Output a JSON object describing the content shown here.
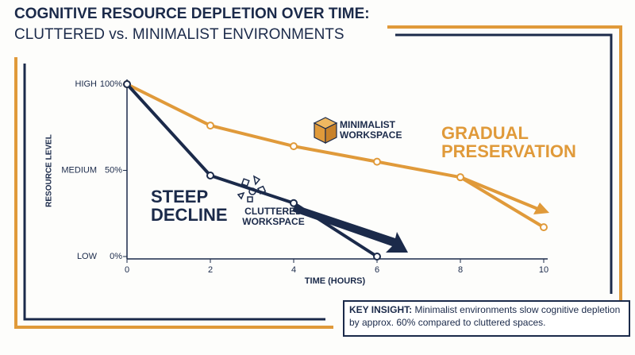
{
  "chart_data": {
    "type": "line",
    "title": "COGNITIVE RESOURCE DEPLETION OVER TIME:",
    "subtitle": "CLUTTERED vs. MINIMALIST ENVIRONMENTS",
    "x_label": "TIME (HOURS)",
    "y_label": "RESOURCE LEVEL",
    "x": [
      0,
      2,
      4,
      6,
      8,
      10
    ],
    "series": [
      {
        "name": "MINIMALIST WORKSPACE",
        "color": "#e09a3a",
        "values": [
          100,
          76,
          64,
          55,
          46,
          17
        ]
      },
      {
        "name": "CLUTTERED WORKSPACE",
        "color": "#1b2a4a",
        "values": [
          100,
          47,
          31,
          0,
          null,
          null
        ]
      }
    ],
    "xlim": [
      0,
      10
    ],
    "xticks": [
      0,
      2,
      4,
      6,
      8,
      10
    ],
    "ylim": [
      0,
      100
    ],
    "yticks": [
      {
        "value": 0,
        "label": "0%"
      },
      {
        "value": 50,
        "label": "50%"
      },
      {
        "value": 100,
        "label": "100%"
      }
    ],
    "level_labels": [
      "LOW",
      "MEDIUM",
      "HIGH"
    ],
    "annotations": {
      "steep": "STEEP DECLINE",
      "gradual": "GRADUAL PRESERVATION"
    },
    "key_insight": {
      "label": "KEY INSIGHT:",
      "text": "Minimalist environments slow cognitive depletion by approx. 60% compared to cluttered spaces."
    }
  }
}
